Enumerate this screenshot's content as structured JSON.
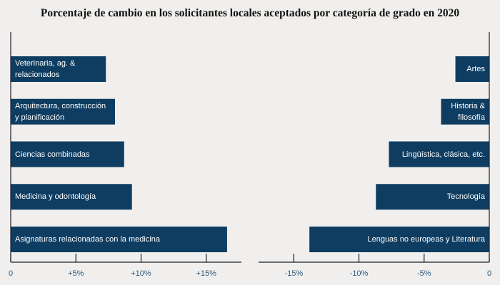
{
  "title": "Porcentaje de cambio en los solicitantes locales aceptados por categoría de grado en 2020",
  "chart_data": [
    {
      "type": "bar",
      "orientation": "horizontal",
      "color": "#0e3d61",
      "categories": [
        "Veterinaria, ag. & relacionados",
        "Arquitectura, construcción y planificación",
        "Ciencias combinadas",
        "Medicina y odontología",
        "Asignaturas relacionadas con la medicina"
      ],
      "values": [
        7.3,
        8.0,
        8.7,
        9.3,
        16.6
      ],
      "xlim": [
        0,
        17.7
      ],
      "xticks": [
        0,
        {
          "value": 5,
          "label": "+5%"
        },
        {
          "value": 10,
          "label": "+10%"
        },
        {
          "value": 15,
          "label": "+15%"
        }
      ]
    },
    {
      "type": "bar",
      "orientation": "horizontal",
      "color": "#0e3d61",
      "categories": [
        "Artes",
        "Historia & filosofía",
        "Lingüística, clásica, etc.",
        "Tecnología",
        "Lenguas no europeas y Literatura"
      ],
      "values": [
        -2.6,
        -3.7,
        -7.7,
        -8.7,
        -13.8
      ],
      "xlim": [
        -17.7,
        0
      ],
      "xticks": [
        {
          "value": -15,
          "label": "-15%"
        },
        {
          "value": -10,
          "label": "-10%"
        },
        {
          "value": -5,
          "label": "-5%"
        },
        0
      ]
    }
  ]
}
